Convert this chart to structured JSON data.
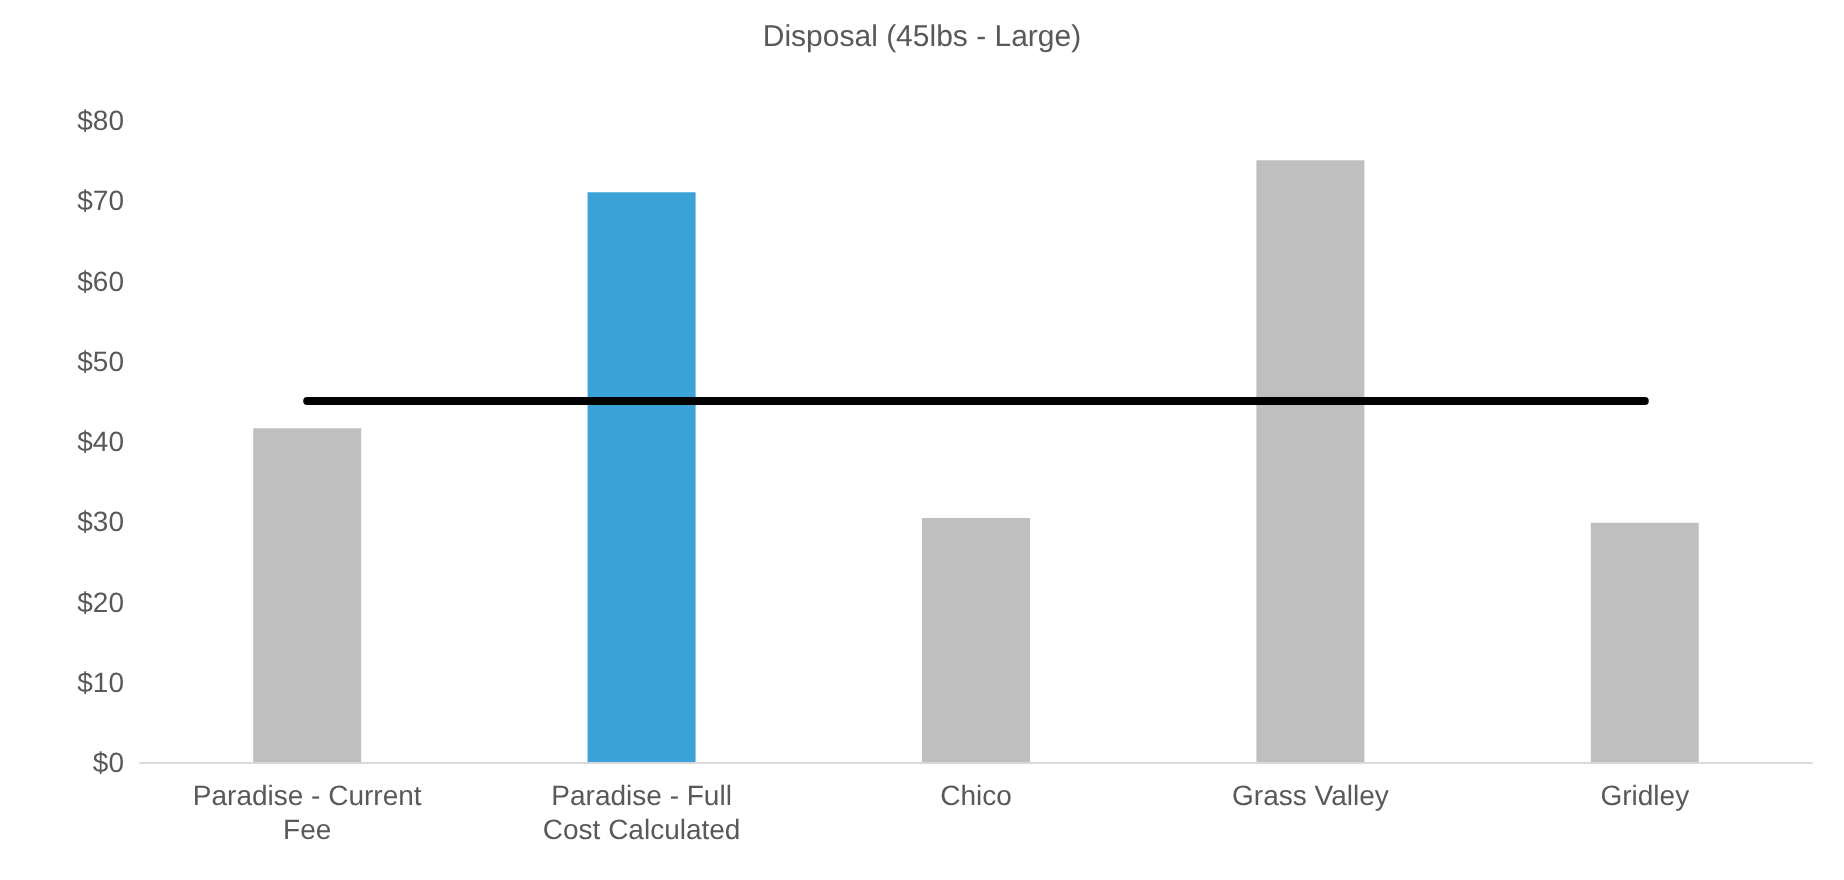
{
  "chart_data": {
    "type": "bar",
    "title": "Disposal (45lbs - Large)",
    "categories": [
      "Paradise - Current\nFee",
      "Paradise - Full\nCost Calculated",
      "Chico",
      "Grass Valley",
      "Gridley"
    ],
    "series": [
      {
        "colors": [
          "#bfbfbf",
          "#3ba3d8",
          "#bfbfbf",
          "#bfbfbf",
          "#bfbfbf"
        ],
        "values": [
          41.6,
          71,
          30.4,
          75,
          29.8
        ]
      },
      {
        "type": "line",
        "color": "#000000",
        "values": [
          45,
          45,
          45,
          45,
          45
        ],
        "marker": "none",
        "line_style": "solid"
      }
    ],
    "ylim": [
      0,
      80
    ],
    "yticks": [
      {
        "value": 0,
        "label": "$0"
      },
      {
        "value": 10,
        "label": "$10"
      },
      {
        "value": 20,
        "label": "$20"
      },
      {
        "value": 30,
        "label": "$30"
      },
      {
        "value": 40,
        "label": "$40"
      },
      {
        "value": 50,
        "label": "$50"
      },
      {
        "value": 60,
        "label": "$60"
      },
      {
        "value": 70,
        "label": "$70"
      },
      {
        "value": 80,
        "label": "$80"
      }
    ],
    "grid": false
  }
}
